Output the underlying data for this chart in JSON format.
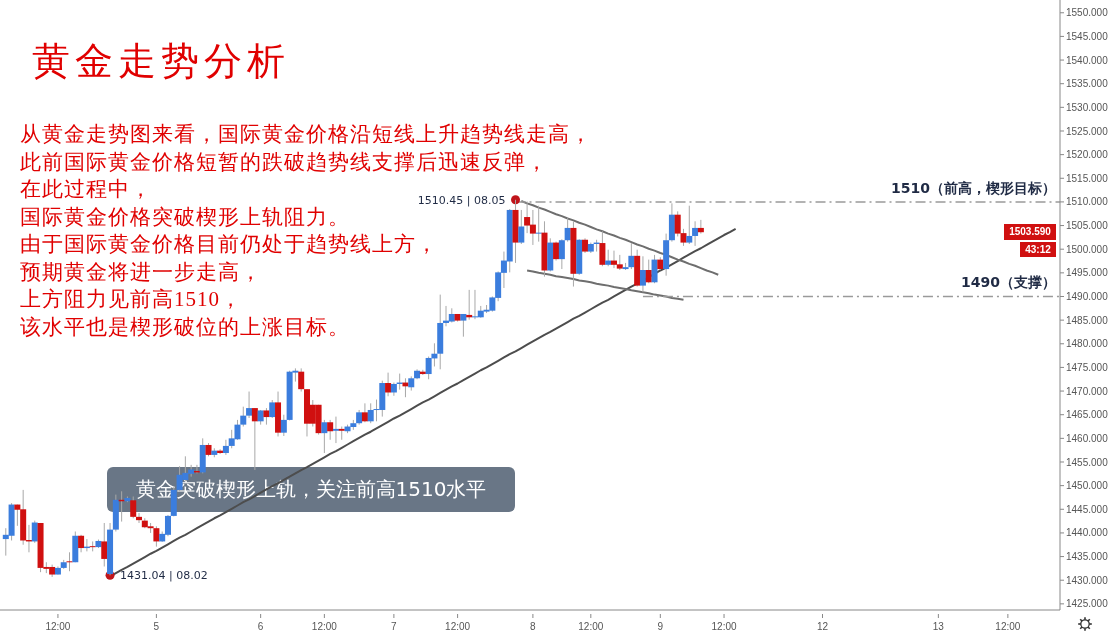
{
  "chart_data": {
    "type": "candlestick",
    "title": "黄金走势分析",
    "annotations": [
      "从黄金走势图来看，国际黄金价格沿短线上升趋势线走高，",
      "此前国际黄金价格短暂的跌破趋势线支撑后迅速反弹，",
      "在此过程中，",
      "国际黄金价格突破楔形上轨阻力。",
      "由于国际黄金价格目前仍处于趋势线上方，",
      "预期黄金将进一步走高，",
      "上方阻力见前高1510，",
      "该水平也是楔形破位的上涨目标。",
      "黄金突破楔形上轨，关注前高1510水平",
      "1503.590",
      "43:12",
      "1431.04 | 08.02",
      "1510.45 | 08.05"
    ],
    "categories": [
      null,
      null,
      null,
      null,
      null,
      null,
      null,
      null,
      null,
      null,
      "12:00",
      null,
      null,
      null,
      null,
      null,
      null,
      null,
      null,
      null,
      null,
      null,
      null,
      null,
      null,
      null,
      null,
      "5",
      null,
      null,
      null,
      null,
      null,
      null,
      null,
      null,
      null,
      null,
      null,
      null,
      null,
      null,
      null,
      null,
      null,
      "6",
      null,
      null,
      null,
      null,
      null,
      null,
      null,
      null,
      null,
      null,
      "12:00",
      null,
      null,
      null,
      null,
      null,
      null,
      null,
      null,
      null,
      null,
      null,
      "7",
      null,
      null,
      null,
      null,
      null,
      null,
      null,
      null,
      null,
      null,
      "12:00",
      null,
      null,
      null,
      null,
      null,
      null,
      null,
      null,
      null,
      null,
      null,
      null,
      "8",
      null,
      null,
      null,
      null,
      null,
      null,
      null,
      null,
      null,
      "12:00",
      null,
      null,
      null,
      null,
      null,
      null,
      null,
      null,
      null,
      null,
      null,
      "9",
      null,
      null,
      null,
      null,
      null,
      null,
      null,
      null,
      null,
      null,
      "12:00",
      null,
      null,
      null,
      null,
      null,
      null,
      null,
      null,
      null,
      null,
      null,
      null,
      null,
      null,
      null,
      null,
      "12",
      null,
      null,
      null,
      null,
      null,
      null,
      null,
      null,
      null,
      null,
      null,
      null,
      null,
      null,
      null,
      null,
      null,
      null,
      null,
      "13",
      null,
      null,
      null,
      null,
      null,
      null,
      null,
      null,
      null,
      null,
      null,
      "12:00",
      null,
      null,
      null,
      null,
      null,
      null,
      null,
      null,
      null
    ],
    "ohlc": [
      null,
      [
        1438.7,
        1441.0,
        1435.2,
        1439.6
      ],
      [
        1439.4,
        1446.3,
        1438.4,
        1446.0
      ],
      [
        1446.0,
        1446.0,
        1441.5,
        1444.9
      ],
      [
        1445.0,
        1449.1,
        1437.5,
        1438.4
      ],
      [
        1438.5,
        1441.7,
        1435.9,
        1438.2
      ],
      [
        1438.2,
        1442.6,
        1437.9,
        1442.2
      ],
      [
        1442.1,
        1442.1,
        1431.7,
        1432.6
      ],
      [
        1432.8,
        1433.8,
        1431.5,
        1432.4
      ],
      [
        1432.8,
        1433.3,
        1430.7,
        1431.2
      ],
      [
        1431.2,
        1432.9,
        1431.2,
        1432.6
      ],
      [
        1432.6,
        1434.3,
        1432.4,
        1433.8
      ],
      [
        1434.0,
        1435.9,
        1431.9,
        1433.8
      ],
      [
        1433.8,
        1440.3,
        1433.8,
        1439.4
      ],
      [
        1439.4,
        1439.6,
        1435.9,
        1436.8
      ],
      [
        1436.8,
        1438.7,
        1436.1,
        1437.1
      ],
      [
        1437.2,
        1438.2,
        1436.1,
        1437.0
      ],
      [
        1437.0,
        1438.6,
        1436.8,
        1438.3
      ],
      [
        1438.2,
        1442.1,
        1432.9,
        1434.5
      ],
      [
        1431.3,
        1442.1,
        1431.04,
        1440.7
      ],
      [
        1440.7,
        1448.1,
        1440.3,
        1447.0
      ],
      [
        1447.0,
        1448.8,
        1442.4,
        1446.7
      ],
      [
        1446.7,
        1447.7,
        1446.5,
        1447.4
      ],
      [
        1446.9,
        1447.7,
        1443.1,
        1443.4
      ],
      [
        1443.4,
        1444.2,
        1442.1,
        1442.7
      ],
      [
        1442.6,
        1443.1,
        1441.0,
        1441.2
      ],
      [
        1441.4,
        1442.1,
        1440.0,
        1441.0
      ],
      [
        1441.0,
        1441.4,
        1437.1,
        1438.2
      ],
      [
        1438.2,
        1440.3,
        1438.1,
        1439.8
      ],
      [
        1439.6,
        1443.8,
        1439.3,
        1443.6
      ],
      [
        1443.6,
        1449.8,
        1443.5,
        1449.1
      ],
      [
        1449.1,
        1454.1,
        1448.8,
        1452.3
      ],
      [
        1451.2,
        1456.2,
        1450.9,
        1452.7
      ],
      [
        1452.5,
        1454.4,
        1451.9,
        1453.4
      ],
      [
        1453.1,
        1454.4,
        1452.6,
        1452.8
      ],
      [
        1452.8,
        1460.0,
        1452.6,
        1458.6
      ],
      [
        1458.6,
        1459.0,
        1456.2,
        1456.5
      ],
      [
        1456.5,
        1457.9,
        1456.0,
        1457.4
      ],
      [
        1457.4,
        1457.7,
        1456.7,
        1456.9
      ],
      [
        1456.9,
        1459.7,
        1456.5,
        1458.4
      ],
      [
        1458.4,
        1461.8,
        1457.9,
        1460.0
      ],
      [
        1459.8,
        1463.9,
        1459.7,
        1462.9
      ],
      [
        1462.9,
        1466.7,
        1462.5,
        1464.8
      ],
      [
        1464.8,
        1469.9,
        1464.3,
        1466.4
      ],
      [
        1466.4,
        1466.4,
        1453.3,
        1463.6
      ],
      [
        1463.6,
        1466.0,
        1462.9,
        1465.9
      ],
      [
        1465.9,
        1466.4,
        1462.9,
        1464.5
      ],
      [
        1464.5,
        1468.1,
        1464.3,
        1467.6
      ],
      [
        1467.6,
        1469.9,
        1460.4,
        1461.2
      ],
      [
        1461.2,
        1465.0,
        1460.5,
        1463.9
      ],
      [
        1463.9,
        1474.3,
        1463.8,
        1474.1
      ],
      [
        1473.9,
        1474.8,
        1472.0,
        1474.3
      ],
      [
        1474.1,
        1474.8,
        1469.9,
        1470.4
      ],
      [
        1470.4,
        1470.4,
        1460.4,
        1463.1
      ],
      [
        1467.1,
        1468.1,
        1462.5,
        1463.1
      ],
      [
        1467.1,
        1467.1,
        1460.8,
        1461.1
      ],
      [
        1461.1,
        1463.9,
        1456.9,
        1463.4
      ],
      [
        1463.4,
        1463.9,
        1459.7,
        1461.5
      ],
      [
        1461.6,
        1464.6,
        1459.0,
        1462.0
      ],
      [
        1462.0,
        1462.5,
        1459.7,
        1461.6
      ],
      [
        1461.5,
        1462.9,
        1461.1,
        1462.5
      ],
      [
        1462.4,
        1463.9,
        1461.8,
        1463.2
      ],
      [
        1463.2,
        1466.0,
        1462.9,
        1465.5
      ],
      [
        1465.5,
        1467.4,
        1463.4,
        1463.6
      ],
      [
        1463.6,
        1467.4,
        1463.2,
        1466.0
      ],
      [
        1466.0,
        1468.2,
        1463.6,
        1466.2
      ],
      [
        1466.0,
        1472.2,
        1464.6,
        1471.7
      ],
      [
        1471.7,
        1473.9,
        1468.9,
        1469.7
      ],
      [
        1469.7,
        1471.8,
        1469.0,
        1471.5
      ],
      [
        1471.5,
        1473.7,
        1470.3,
        1471.8
      ],
      [
        1471.8,
        1472.7,
        1468.7,
        1471.0
      ],
      [
        1470.8,
        1473.1,
        1470.1,
        1472.7
      ],
      [
        1472.7,
        1474.6,
        1472.5,
        1474.3
      ],
      [
        1474.1,
        1474.5,
        1473.4,
        1473.6
      ],
      [
        1473.6,
        1477.3,
        1472.5,
        1477.0
      ],
      [
        1476.9,
        1480.1,
        1475.2,
        1477.9
      ],
      [
        1477.9,
        1490.4,
        1474.6,
        1484.4
      ],
      [
        1484.4,
        1488.0,
        1483.7,
        1484.9
      ],
      [
        1484.7,
        1487.5,
        1484.5,
        1486.3
      ],
      [
        1486.3,
        1486.3,
        1484.7,
        1484.9
      ],
      [
        1484.9,
        1486.3,
        1481.5,
        1486.3
      ],
      [
        1486.1,
        1491.4,
        1485.1,
        1485.6
      ],
      [
        1485.6,
        1491.4,
        1485.2,
        1485.8
      ],
      [
        1485.6,
        1488.0,
        1485.5,
        1487.0
      ],
      [
        1486.8,
        1488.2,
        1486.5,
        1487.2
      ],
      [
        1487.0,
        1490.0,
        1486.8,
        1489.8
      ],
      [
        1489.7,
        1495.3,
        1489.0,
        1495.1
      ],
      [
        1495.0,
        1499.5,
        1491.8,
        1497.6
      ],
      [
        1497.4,
        1508.5,
        1495.1,
        1508.3
      ],
      [
        1508.3,
        1510.45,
        1497.1,
        1501.4
      ],
      [
        1501.4,
        1508.3,
        1501.1,
        1504.8
      ],
      [
        1506.8,
        1510.1,
        1503.4,
        1505.0
      ],
      [
        1505.2,
        1508.3,
        1500.9,
        1503.3
      ],
      [
        1503.3,
        1509.2,
        1501.6,
        1503.5
      ],
      [
        1503.5,
        1505.9,
        1494.2,
        1495.5
      ],
      [
        1495.5,
        1502.3,
        1495.3,
        1501.4
      ],
      [
        1501.4,
        1501.6,
        1497.6,
        1497.9
      ],
      [
        1497.9,
        1502.1,
        1495.8,
        1501.9
      ],
      [
        1501.9,
        1506.7,
        1501.6,
        1504.5
      ],
      [
        1504.5,
        1505.9,
        1492.1,
        1494.8
      ],
      [
        1494.8,
        1502.1,
        1494.6,
        1502.0
      ],
      [
        1502.0,
        1502.3,
        1499.2,
        1499.5
      ],
      [
        1499.5,
        1501.4,
        1499.2,
        1501.1
      ],
      [
        1501.1,
        1502.0,
        1499.5,
        1501.4
      ],
      [
        1501.3,
        1503.8,
        1496.4,
        1496.7
      ],
      [
        1496.7,
        1499.9,
        1496.4,
        1497.6
      ],
      [
        1497.6,
        1499.7,
        1496.0,
        1496.7
      ],
      [
        1496.8,
        1498.8,
        1495.6,
        1495.9
      ],
      [
        1495.8,
        1497.1,
        1495.6,
        1496.2
      ],
      [
        1496.2,
        1501.3,
        1495.8,
        1498.6
      ],
      [
        1498.6,
        1499.9,
        1492.1,
        1492.3
      ],
      [
        1492.3,
        1498.5,
        1490.9,
        1495.6
      ],
      [
        1495.6,
        1497.8,
        1492.8,
        1493.0
      ],
      [
        1493.0,
        1498.8,
        1492.8,
        1497.8
      ],
      [
        1497.8,
        1498.3,
        1495.6,
        1495.8
      ],
      [
        1495.8,
        1503.3,
        1494.4,
        1501.9
      ],
      [
        1501.9,
        1509.7,
        1501.6,
        1507.3
      ],
      [
        1507.3,
        1508.0,
        1502.7,
        1503.3
      ],
      [
        1503.4,
        1504.3,
        1500.7,
        1501.4
      ],
      [
        1501.4,
        1509.2,
        1501.1,
        1502.8
      ],
      [
        1502.8,
        1505.9,
        1500.7,
        1504.5
      ],
      [
        1504.5,
        1506.2,
        1503.3,
        1503.59
      ],
      null,
      null,
      null,
      null,
      null,
      null,
      null,
      null,
      null,
      null,
      null,
      null,
      null,
      null,
      null,
      null,
      null,
      null,
      null,
      null,
      null,
      null,
      null,
      null,
      null,
      null,
      null,
      null,
      null,
      null,
      null,
      null,
      null,
      null,
      null,
      null,
      null,
      null,
      null,
      null,
      null,
      null,
      null,
      null,
      null,
      null,
      null,
      null,
      null,
      null,
      null,
      null,
      null,
      null,
      null,
      null,
      null,
      null,
      null,
      null,
      null,
      null
    ],
    "colors": [
      null,
      "#3b7ddd",
      "#3b7ddd",
      "#d01010",
      "#d01010",
      "#d01010",
      "#3b7ddd",
      "#d01010",
      "#d01010",
      "#d01010",
      "#3b7ddd",
      "#3b7ddd",
      "#d01010",
      "#3b7ddd",
      "#d01010",
      "#3b7ddd",
      "#d01010",
      "#3b7ddd",
      "#d01010",
      "#3b7ddd",
      "#3b7ddd",
      "#d01010",
      "#3b7ddd",
      "#d01010",
      "#d01010",
      "#d01010",
      "#d01010",
      "#d01010",
      "#3b7ddd",
      "#3b7ddd",
      "#3b7ddd",
      "#3b7ddd",
      "#3b7ddd",
      "#3b7ddd",
      "#d01010",
      "#3b7ddd",
      "#d01010",
      "#3b7ddd",
      "#d01010",
      "#3b7ddd",
      "#3b7ddd",
      "#3b7ddd",
      "#3b7ddd",
      "#3b7ddd",
      "#d01010",
      "#3b7ddd",
      "#d01010",
      "#3b7ddd",
      "#d01010",
      "#3b7ddd",
      "#3b7ddd",
      "#3b7ddd",
      "#d01010",
      "#d01010",
      "#d01010",
      "#d01010",
      "#3b7ddd",
      "#d01010",
      "#3b7ddd",
      "#d01010",
      "#3b7ddd",
      "#3b7ddd",
      "#3b7ddd",
      "#d01010",
      "#3b7ddd",
      "#3b7ddd",
      "#3b7ddd",
      "#d01010",
      "#3b7ddd",
      "#3b7ddd",
      "#d01010",
      "#3b7ddd",
      "#3b7ddd",
      "#d01010",
      "#3b7ddd",
      "#3b7ddd",
      "#3b7ddd",
      "#3b7ddd",
      "#3b7ddd",
      "#d01010",
      "#3b7ddd",
      "#d01010",
      "#3b7ddd",
      "#3b7ddd",
      "#3b7ddd",
      "#3b7ddd",
      "#3b7ddd",
      "#3b7ddd",
      "#3b7ddd",
      "#d01010",
      "#3b7ddd",
      "#d01010",
      "#d01010",
      "#3b7ddd",
      "#d01010",
      "#3b7ddd",
      "#d01010",
      "#3b7ddd",
      "#3b7ddd",
      "#d01010",
      "#3b7ddd",
      "#d01010",
      "#3b7ddd",
      "#3b7ddd",
      "#d01010",
      "#3b7ddd",
      "#d01010",
      "#d01010",
      "#3b7ddd",
      "#3b7ddd",
      "#d01010",
      "#3b7ddd",
      "#d01010",
      "#3b7ddd",
      "#d01010",
      "#3b7ddd",
      "#3b7ddd",
      "#d01010",
      "#d01010",
      "#3b7ddd",
      "#3b7ddd",
      "#d01010",
      null,
      null,
      null,
      null,
      null,
      null,
      null,
      null,
      null,
      null,
      null,
      null,
      null,
      null,
      null,
      null,
      null,
      null,
      null,
      null,
      null,
      null,
      null,
      null,
      null,
      null,
      null,
      null,
      null,
      null,
      null,
      null,
      null,
      null,
      null,
      null,
      null,
      null,
      null,
      null,
      null,
      null,
      null,
      null,
      null,
      null,
      null,
      null,
      null,
      null,
      null,
      null,
      null,
      null,
      null,
      null,
      null,
      null,
      null,
      null,
      null,
      null
    ],
    "series": [
      {
        "type": "line",
        "color": "#4d4d4d",
        "values": [
          null,
          null,
          null,
          null,
          null,
          null,
          null,
          null,
          null,
          null,
          null,
          null,
          null,
          null,
          null,
          null,
          null,
          null,
          null,
          1430.8,
          1431.5,
          1432.2,
          1432.8,
          1433.5,
          1434.2,
          1434.9,
          1435.6,
          1436.2,
          1436.9,
          1437.6,
          1438.3,
          1439.0,
          1439.6,
          1440.3,
          1441.0,
          1441.7,
          1442.4,
          1443.1,
          1443.7,
          1444.4,
          1445.1,
          1445.8,
          1446.5,
          1447.1,
          1447.8,
          1448.5,
          1449.2,
          1449.9,
          1450.5,
          1451.2,
          1451.9,
          1452.6,
          1453.3,
          1453.9,
          1454.6,
          1455.3,
          1456.0,
          1456.7,
          1457.3,
          1458.0,
          1458.7,
          1459.4,
          1460.1,
          1460.8,
          1461.4,
          1462.1,
          1462.8,
          1463.5,
          1464.2,
          1464.8,
          1465.5,
          1466.2,
          1466.9,
          1467.6,
          1468.2,
          1468.9,
          1469.6,
          1470.3,
          1471.0,
          1471.6,
          1472.3,
          1473.0,
          1473.7,
          1474.4,
          1475.0,
          1475.7,
          1476.4,
          1477.1,
          1477.8,
          1478.4,
          1479.1,
          1479.8,
          1480.5,
          1481.2,
          1481.9,
          1482.5,
          1483.2,
          1483.9,
          1484.6,
          1485.3,
          1485.9,
          1486.6,
          1487.3,
          1488.0,
          1488.7,
          1489.3,
          1490.0,
          1490.7,
          1491.4,
          1492.1,
          1492.7,
          1493.4,
          1494.1,
          1494.8,
          1495.5,
          1496.1,
          1496.8,
          1497.5,
          1498.2,
          1498.9,
          1499.6,
          1500.2,
          1500.9,
          1501.6,
          1502.3,
          1503.0,
          1503.6,
          1504.3,
          null,
          null,
          null,
          null,
          null,
          null,
          null,
          null,
          null,
          null,
          null,
          null,
          null,
          null,
          null,
          null,
          null,
          null,
          null,
          null,
          null,
          null,
          null,
          null,
          null,
          null,
          null,
          null,
          null,
          null,
          null,
          null,
          null,
          null,
          null,
          null,
          null,
          null,
          null,
          null,
          null,
          null,
          null,
          null,
          null,
          null,
          null,
          null,
          null,
          null,
          null,
          null,
          null,
          null,
          null,
          null
        ]
      },
      {
        "type": "line",
        "color": "#6e6e6e",
        "values": [
          null,
          null,
          null,
          null,
          null,
          null,
          null,
          null,
          null,
          null,
          null,
          null,
          null,
          null,
          null,
          null,
          null,
          null,
          null,
          null,
          null,
          null,
          null,
          null,
          null,
          null,
          null,
          null,
          null,
          null,
          null,
          null,
          null,
          null,
          null,
          null,
          null,
          null,
          null,
          null,
          null,
          null,
          null,
          null,
          null,
          null,
          null,
          null,
          null,
          null,
          null,
          null,
          null,
          null,
          null,
          null,
          null,
          null,
          null,
          null,
          null,
          null,
          null,
          null,
          null,
          null,
          null,
          null,
          null,
          null,
          null,
          null,
          null,
          null,
          null,
          null,
          null,
          null,
          null,
          null,
          null,
          null,
          null,
          null,
          null,
          null,
          null,
          null,
          null,
          null,
          1510.2,
          1509.7,
          1509.3,
          1508.8,
          1508.4,
          1507.9,
          1507.4,
          1507.0,
          1506.5,
          1506.1,
          1505.6,
          1505.2,
          1504.7,
          1504.2,
          1503.8,
          1503.3,
          1502.9,
          1502.4,
          1502.0,
          1501.5,
          1501.0,
          1500.6,
          1500.1,
          1499.7,
          1499.2,
          1498.8,
          1498.3,
          1497.8,
          1497.4,
          1496.9,
          1496.5,
          1496.0,
          1495.5,
          1495.1,
          1494.6,
          null,
          null,
          null,
          null,
          null,
          null,
          null,
          null,
          null,
          null,
          null,
          null,
          null,
          null,
          null,
          null,
          null,
          null,
          null,
          null,
          null,
          null,
          null,
          null,
          null,
          null,
          null,
          null,
          null,
          null,
          null,
          null,
          null,
          null,
          null,
          null,
          null,
          null,
          null,
          null,
          null,
          null,
          null,
          null,
          null,
          null,
          null,
          null,
          null,
          null,
          null,
          null,
          null,
          null,
          null,
          null,
          null,
          null,
          null
        ]
      },
      {
        "type": "line",
        "color": "#6e6e6e",
        "values": [
          null,
          null,
          null,
          null,
          null,
          null,
          null,
          null,
          null,
          null,
          null,
          null,
          null,
          null,
          null,
          null,
          null,
          null,
          null,
          null,
          null,
          null,
          null,
          null,
          null,
          null,
          null,
          null,
          null,
          null,
          null,
          null,
          null,
          null,
          null,
          null,
          null,
          null,
          null,
          null,
          null,
          null,
          null,
          null,
          null,
          null,
          null,
          null,
          null,
          null,
          null,
          null,
          null,
          null,
          null,
          null,
          null,
          null,
          null,
          null,
          null,
          null,
          null,
          null,
          null,
          null,
          null,
          null,
          null,
          null,
          null,
          null,
          null,
          null,
          null,
          null,
          null,
          null,
          null,
          null,
          null,
          null,
          null,
          null,
          null,
          null,
          null,
          null,
          null,
          null,
          null,
          1495.5,
          1495.3,
          1495.0,
          1494.8,
          1494.6,
          1494.3,
          1494.1,
          1493.9,
          1493.7,
          1493.4,
          1493.2,
          1493.0,
          1492.7,
          1492.5,
          1492.3,
          1492.0,
          1491.8,
          1491.6,
          1491.3,
          1491.1,
          1490.9,
          1490.7,
          1490.4,
          1490.2,
          1490.0,
          1489.7,
          1489.5,
          1489.3,
          null,
          null,
          null,
          null,
          null,
          null,
          null,
          null,
          null,
          null,
          null,
          null,
          null,
          null,
          null,
          null,
          null,
          null,
          null,
          null,
          null,
          null,
          null,
          null,
          null,
          null,
          null,
          null,
          null,
          null,
          null,
          null,
          null,
          null,
          null,
          null,
          null,
          null,
          null,
          null,
          null,
          null,
          null,
          null,
          null,
          null,
          null,
          null,
          null,
          null,
          null,
          null,
          null,
          null,
          null,
          null,
          null,
          null,
          null,
          null,
          null,
          null,
          null,
          null,
          null
        ]
      },
      {
        "type": "line",
        "name": "1510（前高，楔形目标）",
        "color": "#9a9a9a",
        "line_style": "dashed",
        "values": [
          null,
          null,
          null,
          null,
          null,
          null,
          null,
          null,
          null,
          null,
          null,
          null,
          null,
          null,
          null,
          null,
          null,
          null,
          null,
          null,
          null,
          null,
          null,
          null,
          null,
          null,
          null,
          null,
          null,
          null,
          null,
          null,
          null,
          null,
          null,
          null,
          null,
          null,
          null,
          null,
          null,
          null,
          null,
          null,
          null,
          null,
          null,
          null,
          null,
          null,
          null,
          null,
          null,
          null,
          null,
          null,
          null,
          null,
          null,
          null,
          null,
          null,
          null,
          null,
          null,
          null,
          null,
          null,
          null,
          null,
          null,
          null,
          null,
          null,
          null,
          null,
          null,
          null,
          null,
          null,
          null,
          null,
          null,
          null,
          null,
          null,
          null,
          null,
          null,
          1510,
          1510,
          1510,
          1510,
          1510,
          1510,
          1510,
          1510,
          1510,
          1510,
          1510,
          1510,
          1510,
          1510,
          1510,
          1510,
          1510,
          1510,
          1510,
          1510,
          1510,
          1510,
          1510,
          1510,
          1510,
          1510,
          1510,
          1510,
          1510,
          1510,
          1510,
          1510,
          1510,
          1510,
          1510,
          1510,
          1510,
          1510,
          1510,
          1510,
          1510,
          1510,
          1510,
          1510,
          1510,
          1510,
          1510,
          1510,
          1510,
          1510,
          1510,
          1510,
          1510,
          1510,
          1510,
          1510,
          1510,
          1510,
          1510,
          1510,
          1510,
          1510,
          1510,
          1510,
          1510,
          1510,
          1510,
          1510,
          1510,
          1510,
          1510,
          1510,
          1510,
          1510,
          1510,
          1510,
          1510,
          1510,
          1510,
          1510,
          1510,
          1510,
          1510,
          1510,
          1510,
          1510,
          1510,
          1510,
          1510,
          1510,
          1510,
          1510,
          1510,
          1510,
          1510
        ]
      },
      {
        "type": "line",
        "name": "1490（支撑）",
        "color": "#9a9a9a",
        "line_style": "dashed",
        "values": [
          null,
          null,
          null,
          null,
          null,
          null,
          null,
          null,
          null,
          null,
          null,
          null,
          null,
          null,
          null,
          null,
          null,
          null,
          null,
          null,
          null,
          null,
          null,
          null,
          null,
          null,
          null,
          null,
          null,
          null,
          null,
          null,
          null,
          null,
          null,
          null,
          null,
          null,
          null,
          null,
          null,
          null,
          null,
          null,
          null,
          null,
          null,
          null,
          null,
          null,
          null,
          null,
          null,
          null,
          null,
          null,
          null,
          null,
          null,
          null,
          null,
          null,
          null,
          null,
          null,
          null,
          null,
          null,
          null,
          null,
          null,
          null,
          null,
          null,
          null,
          null,
          null,
          null,
          null,
          null,
          null,
          null,
          null,
          null,
          null,
          null,
          null,
          null,
          null,
          null,
          null,
          null,
          null,
          null,
          null,
          null,
          null,
          null,
          null,
          null,
          null,
          null,
          null,
          null,
          null,
          null,
          null,
          null,
          null,
          null,
          null,
          1490,
          1490,
          1490,
          1490,
          1490,
          1490,
          1490,
          1490,
          1490,
          1490,
          1490,
          1490,
          1490,
          1490,
          1490,
          1490,
          1490,
          1490,
          1490,
          1490,
          1490,
          1490,
          1490,
          1490,
          1490,
          1490,
          1490,
          1490,
          1490,
          1490,
          1490,
          1490,
          1490,
          1490,
          1490,
          1490,
          1490,
          1490,
          1490,
          1490,
          1490,
          1490,
          1490,
          1490,
          1490,
          1490,
          1490,
          1490,
          1490,
          1490,
          1490,
          1490,
          1490,
          1490,
          1490,
          1490,
          1490,
          1490,
          1490,
          1490,
          1490,
          1490,
          1490,
          1490,
          1490,
          1490,
          1490,
          1490,
          1490,
          1490,
          1490,
          1490,
          1490
        ]
      },
      {
        "type": "scatter",
        "color": "#c0141a",
        "marker": "circle",
        "values": [
          null,
          null,
          null,
          null,
          null,
          null,
          null,
          null,
          null,
          null,
          null,
          null,
          null,
          null,
          null,
          null,
          null,
          null,
          null,
          1431.04,
          null,
          null,
          null,
          null,
          null,
          null,
          null,
          null,
          null,
          null,
          null,
          null,
          null,
          null,
          null,
          null,
          null,
          null,
          null,
          null,
          null,
          null,
          null,
          null,
          null,
          null,
          null,
          null,
          null,
          null,
          null,
          null,
          null,
          null,
          null,
          null,
          null,
          null,
          null,
          null,
          null,
          null,
          null,
          null,
          null,
          null,
          null,
          null,
          null,
          null,
          null,
          null,
          null,
          null,
          null,
          null,
          null,
          null,
          null,
          null,
          null,
          null,
          null,
          null,
          null,
          null,
          null,
          null,
          null,
          1510.45,
          null,
          null,
          null,
          null,
          null,
          null,
          null,
          null,
          null,
          null,
          null,
          null,
          null,
          null,
          null,
          null,
          null,
          null,
          null,
          null,
          null,
          null,
          null,
          null,
          null,
          null,
          null,
          null,
          null,
          null,
          null,
          null,
          null,
          null,
          null,
          null,
          null,
          null,
          null,
          null,
          null,
          null,
          null,
          null,
          null,
          null,
          null,
          null,
          null,
          null,
          null,
          null,
          null,
          null,
          null,
          null,
          null,
          null,
          null,
          null,
          null,
          null,
          null,
          null,
          null,
          null,
          null,
          null,
          null,
          null,
          null,
          null,
          null,
          null,
          null,
          null,
          null,
          null,
          null,
          null,
          null,
          null,
          null,
          null,
          null,
          null,
          null,
          null,
          null,
          null,
          null,
          null,
          null,
          null
        ]
      }
    ],
    "ylim": [
      1423.7,
      1552.7
    ],
    "yticks": [
      {
        "value": 1425,
        "label": "1425.000"
      },
      {
        "value": 1430,
        "label": "1430.000"
      },
      {
        "value": 1435,
        "label": "1435.000"
      },
      {
        "value": 1440,
        "label": "1440.000"
      },
      {
        "value": 1445,
        "label": "1445.000"
      },
      {
        "value": 1450,
        "label": "1450.000"
      },
      {
        "value": 1455,
        "label": "1455.000"
      },
      {
        "value": 1460,
        "label": "1460.000"
      },
      {
        "value": 1465,
        "label": "1465.000"
      },
      {
        "value": 1470,
        "label": "1470.000"
      },
      {
        "value": 1475,
        "label": "1475.000"
      },
      {
        "value": 1480,
        "label": "1480.000"
      },
      {
        "value": 1485,
        "label": "1485.000"
      },
      {
        "value": 1490,
        "label": "1490.000"
      },
      {
        "value": 1495,
        "label": "1495.000"
      },
      {
        "value": 1500,
        "label": "1500.000"
      },
      {
        "value": 1505,
        "label": "1505.000"
      },
      {
        "value": 1510,
        "label": "1510.000"
      },
      {
        "value": 1515,
        "label": "1515.000"
      },
      {
        "value": 1520,
        "label": "1520.000"
      },
      {
        "value": 1525,
        "label": "1525.000"
      },
      {
        "value": 1530,
        "label": "1530.000"
      },
      {
        "value": 1535,
        "label": "1535.000"
      },
      {
        "value": 1540,
        "label": "1540.000"
      },
      {
        "value": 1545,
        "label": "1545.000"
      },
      {
        "value": 1550,
        "label": "1550.000"
      }
    ],
    "grid": false
  }
}
